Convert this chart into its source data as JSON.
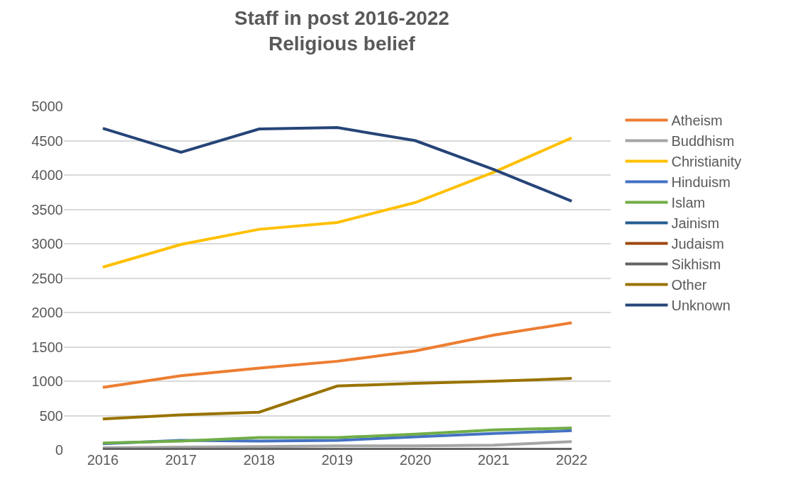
{
  "chart_data": {
    "type": "line",
    "title": "Staff in post 2016-2022",
    "subtitle": "Religious belief",
    "categories": [
      "2016",
      "2017",
      "2018",
      "2019",
      "2020",
      "2021",
      "2022"
    ],
    "ylim": [
      0,
      5000
    ],
    "yticks": [
      0,
      500,
      1000,
      1500,
      2000,
      2500,
      3000,
      3500,
      4000,
      4500,
      5000
    ],
    "grid": "y",
    "legend": "right",
    "marker": "none",
    "line_style": "solid",
    "series": [
      {
        "name": "Atheism",
        "color": "#ed7d31",
        "values": [
          910,
          1080,
          1190,
          1290,
          1440,
          1670,
          1850
        ]
      },
      {
        "name": "Buddhism",
        "color": "#a5a5a5",
        "values": [
          30,
          40,
          50,
          60,
          60,
          70,
          120
        ]
      },
      {
        "name": "Christianity",
        "color": "#ffc000",
        "values": [
          2660,
          2990,
          3210,
          3310,
          3600,
          4040,
          4540
        ]
      },
      {
        "name": "Hinduism",
        "color": "#4472c4",
        "values": [
          90,
          140,
          130,
          140,
          190,
          240,
          280
        ]
      },
      {
        "name": "Islam",
        "color": "#70ad47",
        "values": [
          100,
          130,
          180,
          180,
          230,
          290,
          320
        ]
      },
      {
        "name": "Jainism",
        "color": "#255e91",
        "values": [
          null,
          null,
          null,
          null,
          null,
          null,
          null
        ]
      },
      {
        "name": "Judaism",
        "color": "#9e480e",
        "values": [
          null,
          null,
          null,
          null,
          null,
          null,
          null
        ]
      },
      {
        "name": "Sikhism",
        "color": "#636363",
        "values": [
          10,
          10,
          10,
          10,
          10,
          10,
          10
        ]
      },
      {
        "name": "Other",
        "color": "#997300",
        "values": [
          450,
          510,
          550,
          930,
          970,
          1000,
          1040
        ]
      },
      {
        "name": "Unknown",
        "color": "#264478",
        "values": [
          4680,
          4330,
          4670,
          4690,
          4500,
          4080,
          3620
        ]
      }
    ]
  }
}
